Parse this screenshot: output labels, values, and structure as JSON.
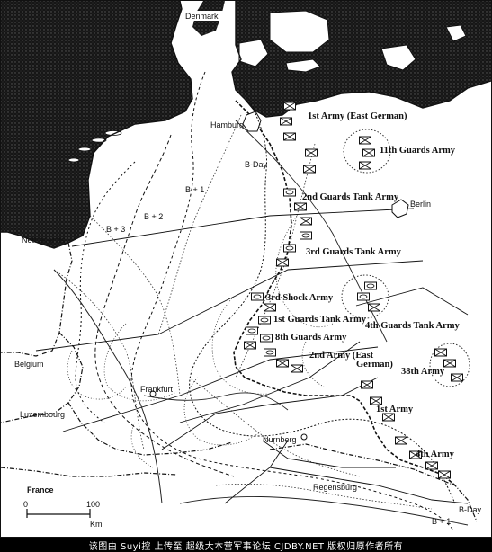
{
  "places": {
    "denmark": "Denmark",
    "hamburg": "Hamburg",
    "berlin": "Berlin",
    "netherlands": "Netherlands",
    "belgium": "Belgium",
    "luxembourg": "Luxembourg",
    "frankfurt": "Frankfurt",
    "nurnberg": "Nurnberg",
    "regensburg": "Regensburg",
    "france": "France"
  },
  "waves": {
    "b_day_north": "B-Day",
    "b_plus_1_north": "B + 1",
    "b_plus_2": "B + 2",
    "b_plus_3": "B + 3",
    "b_day_south": "B-Day",
    "b_plus_1_south": "B + 1"
  },
  "armies": {
    "first_army_ge": "1st Army (East German)",
    "eleventh_guards": "11th Guards Army",
    "second_guards_tank": "2nd Guards Tank Army",
    "third_guards_tank": "3rd Guards Tank Army",
    "third_shock": "3rd Shock Army",
    "first_guards_tank": "1st Guards Tank Army",
    "fourth_guards_tank": "4th Guards Tank Army",
    "eighth_guards": "8th Guards Army",
    "second_army_ge_line1": "2nd Army (East",
    "second_army_ge_line2": "German)",
    "thirty_eighth": "38th Army",
    "first_army": "1st Army",
    "fourth_army": "4th Army"
  },
  "scale": {
    "zero": "0",
    "hundred": "100",
    "unit": "Km"
  },
  "footer": {
    "text": "该图由 Suyi控 上传至 超级大本营军事论坛 CJDBY.NET 版权归原作者所有"
  },
  "colors": {
    "sea": "#1a1a1a",
    "land": "#ffffff",
    "ink": "#111111",
    "footer_bg": "#000000",
    "footer_text": "#ffffff"
  }
}
